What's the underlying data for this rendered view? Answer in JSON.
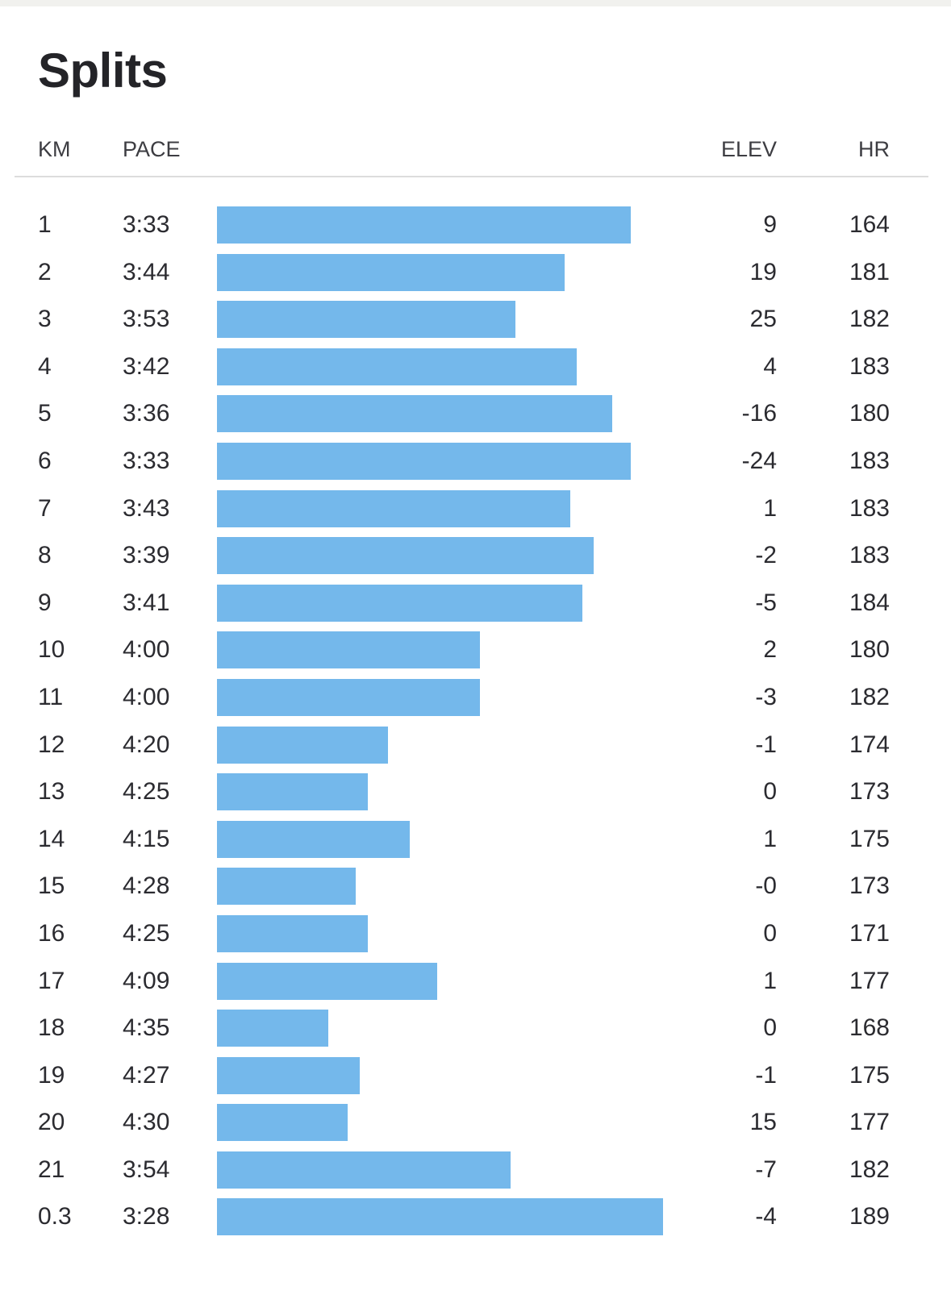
{
  "title": "Splits",
  "columns": {
    "km": "KM",
    "pace": "PACE",
    "elev": "ELEV",
    "hr": "HR"
  },
  "accent_color": "#74b8eb",
  "splits": [
    {
      "km": "1",
      "pace": "3:33",
      "elev": "9",
      "hr": "164"
    },
    {
      "km": "2",
      "pace": "3:44",
      "elev": "19",
      "hr": "181"
    },
    {
      "km": "3",
      "pace": "3:53",
      "elev": "25",
      "hr": "182"
    },
    {
      "km": "4",
      "pace": "3:42",
      "elev": "4",
      "hr": "183"
    },
    {
      "km": "5",
      "pace": "3:36",
      "elev": "-16",
      "hr": "180"
    },
    {
      "km": "6",
      "pace": "3:33",
      "elev": "-24",
      "hr": "183"
    },
    {
      "km": "7",
      "pace": "3:43",
      "elev": "1",
      "hr": "183"
    },
    {
      "km": "8",
      "pace": "3:39",
      "elev": "-2",
      "hr": "183"
    },
    {
      "km": "9",
      "pace": "3:41",
      "elev": "-5",
      "hr": "184"
    },
    {
      "km": "10",
      "pace": "4:00",
      "elev": "2",
      "hr": "180"
    },
    {
      "km": "11",
      "pace": "4:00",
      "elev": "-3",
      "hr": "182"
    },
    {
      "km": "12",
      "pace": "4:20",
      "elev": "-1",
      "hr": "174"
    },
    {
      "km": "13",
      "pace": "4:25",
      "elev": "0",
      "hr": "173"
    },
    {
      "km": "14",
      "pace": "4:15",
      "elev": "1",
      "hr": "175"
    },
    {
      "km": "15",
      "pace": "4:28",
      "elev": "-0",
      "hr": "173"
    },
    {
      "km": "16",
      "pace": "4:25",
      "elev": "0",
      "hr": "171"
    },
    {
      "km": "17",
      "pace": "4:09",
      "elev": "1",
      "hr": "177"
    },
    {
      "km": "18",
      "pace": "4:35",
      "elev": "0",
      "hr": "168"
    },
    {
      "km": "19",
      "pace": "4:27",
      "elev": "-1",
      "hr": "175"
    },
    {
      "km": "20",
      "pace": "4:30",
      "elev": "15",
      "hr": "177"
    },
    {
      "km": "21",
      "pace": "3:54",
      "elev": "-7",
      "hr": "182"
    },
    {
      "km": "0.3",
      "pace": "3:28",
      "elev": "-4",
      "hr": "189"
    }
  ]
}
